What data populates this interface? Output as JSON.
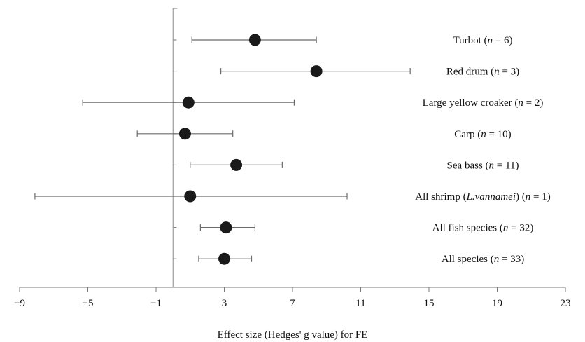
{
  "chart_data": {
    "type": "forest",
    "xlabel": "Effect size (Hedges' g value) for FE",
    "xlim": [
      -9,
      23
    ],
    "xticks": [
      -9,
      -5,
      -1,
      3,
      7,
      11,
      15,
      19,
      23
    ],
    "xtick_labels": [
      "−9",
      "−5",
      "−1",
      "3",
      "7",
      "11",
      "15",
      "19",
      "23"
    ],
    "reference_line": 0,
    "grid": false,
    "rows": [
      {
        "name": "Turbot",
        "n_label": "n",
        "n_value": "= 6",
        "estimate": 4.8,
        "lower": 1.1,
        "upper": 8.4
      },
      {
        "name": "Red drum",
        "n_label": "n",
        "n_value": "= 3",
        "estimate": 8.4,
        "lower": 2.8,
        "upper": 13.9
      },
      {
        "name": "Large yellow croaker",
        "n_label": "n",
        "n_value": "= 2",
        "estimate": 0.9,
        "lower": -5.3,
        "upper": 7.1
      },
      {
        "name": "Carp",
        "n_label": "n",
        "n_value": "= 10",
        "estimate": 0.7,
        "lower": -2.1,
        "upper": 3.5
      },
      {
        "name": "Sea bass",
        "n_label": "n",
        "n_value": "= 11",
        "estimate": 3.7,
        "lower": 1.0,
        "upper": 6.4
      },
      {
        "name": "All shrimp",
        "species_prefix": "(",
        "species": "L.vannamei",
        "species_suffix": ")",
        "n_label": "n",
        "n_value": "= 1",
        "estimate": 1.0,
        "lower": -8.1,
        "upper": 10.2
      },
      {
        "name": "All fish species",
        "n_label": "n",
        "n_value": "= 32",
        "estimate": 3.1,
        "lower": 1.6,
        "upper": 4.8
      },
      {
        "name": "All species",
        "n_label": "n",
        "n_value": "= 33",
        "estimate": 3.0,
        "lower": 1.5,
        "upper": 4.6
      }
    ]
  }
}
